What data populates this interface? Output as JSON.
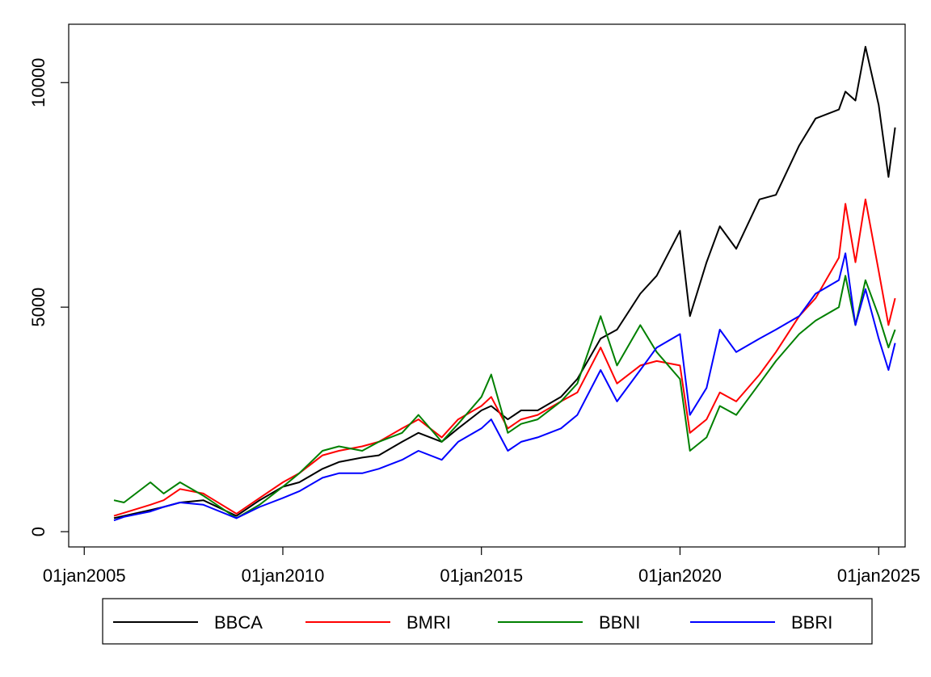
{
  "chart_data": {
    "type": "line",
    "x": [
      "2005-10-01",
      "2006-01-01",
      "2006-09-01",
      "2007-01-01",
      "2007-06-01",
      "2008-01-01",
      "2008-11-01",
      "2009-06-01",
      "2010-01-01",
      "2010-06-01",
      "2011-01-01",
      "2011-06-01",
      "2012-01-01",
      "2012-06-01",
      "2013-01-01",
      "2013-06-01",
      "2014-01-01",
      "2014-06-01",
      "2015-01-01",
      "2015-04-01",
      "2015-09-01",
      "2016-01-01",
      "2016-06-01",
      "2017-01-01",
      "2017-06-01",
      "2018-01-01",
      "2018-06-01",
      "2019-01-01",
      "2019-06-01",
      "2020-01-01",
      "2020-04-01",
      "2020-09-01",
      "2021-01-01",
      "2021-06-01",
      "2022-01-01",
      "2022-06-01",
      "2023-01-01",
      "2023-06-01",
      "2024-01-01",
      "2024-03-01",
      "2024-06-01",
      "2024-09-01",
      "2025-01-01",
      "2025-04-01",
      "2025-06-01"
    ],
    "series": [
      {
        "name": "BBCA",
        "color": "#000000",
        "values": [
          300,
          350,
          480,
          550,
          650,
          700,
          350,
          700,
          1000,
          1100,
          1400,
          1550,
          1650,
          1700,
          2000,
          2200,
          2000,
          2300,
          2700,
          2800,
          2500,
          2700,
          2700,
          3000,
          3400,
          4300,
          4500,
          5300,
          5700,
          6700,
          4800,
          6000,
          6800,
          6300,
          7400,
          7500,
          8600,
          9200,
          9400,
          9800,
          9600,
          10800,
          9500,
          7900,
          9000
        ]
      },
      {
        "name": "BMRI",
        "color": "#ff0000",
        "values": [
          350,
          420,
          600,
          700,
          950,
          850,
          400,
          750,
          1100,
          1300,
          1700,
          1800,
          1900,
          2000,
          2300,
          2500,
          2100,
          2500,
          2800,
          3000,
          2300,
          2500,
          2600,
          2900,
          3100,
          4100,
          3300,
          3700,
          3800,
          3700,
          2200,
          2500,
          3100,
          2900,
          3500,
          4000,
          4800,
          5200,
          6100,
          7300,
          6000,
          7400,
          5800,
          4600,
          5200
        ]
      },
      {
        "name": "BBNI",
        "color": "#008000",
        "values": [
          700,
          650,
          1100,
          850,
          1100,
          800,
          300,
          600,
          1000,
          1300,
          1800,
          1900,
          1800,
          2000,
          2200,
          2600,
          2000,
          2400,
          3000,
          3500,
          2200,
          2400,
          2500,
          2900,
          3300,
          4800,
          3700,
          4600,
          4000,
          3400,
          1800,
          2100,
          2800,
          2600,
          3300,
          3800,
          4400,
          4700,
          5000,
          5700,
          4600,
          5600,
          4800,
          4100,
          4500
        ]
      },
      {
        "name": "BBRI",
        "color": "#0000ff",
        "values": [
          250,
          330,
          450,
          550,
          650,
          600,
          300,
          550,
          750,
          900,
          1200,
          1300,
          1300,
          1400,
          1600,
          1800,
          1600,
          2000,
          2300,
          2500,
          1800,
          2000,
          2100,
          2300,
          2600,
          3600,
          2900,
          3600,
          4100,
          4400,
          2600,
          3200,
          4500,
          4000,
          4300,
          4500,
          4800,
          5300,
          5600,
          6200,
          4600,
          5400,
          4300,
          3600,
          4200
        ]
      }
    ],
    "xlim": [
      "2004-08-11",
      "2025-09-01"
    ],
    "xticks": [
      {
        "value": "2005-01-01",
        "label": "01jan2005"
      },
      {
        "value": "2010-01-01",
        "label": "01jan2010"
      },
      {
        "value": "2015-01-01",
        "label": "01jan2015"
      },
      {
        "value": "2020-01-01",
        "label": "01jan2020"
      },
      {
        "value": "2025-01-01",
        "label": "01jan2025"
      }
    ],
    "ylim": [
      -340,
      11300
    ],
    "yticks": [
      0,
      5000,
      10000
    ],
    "grid": false,
    "legend": "bottom"
  }
}
